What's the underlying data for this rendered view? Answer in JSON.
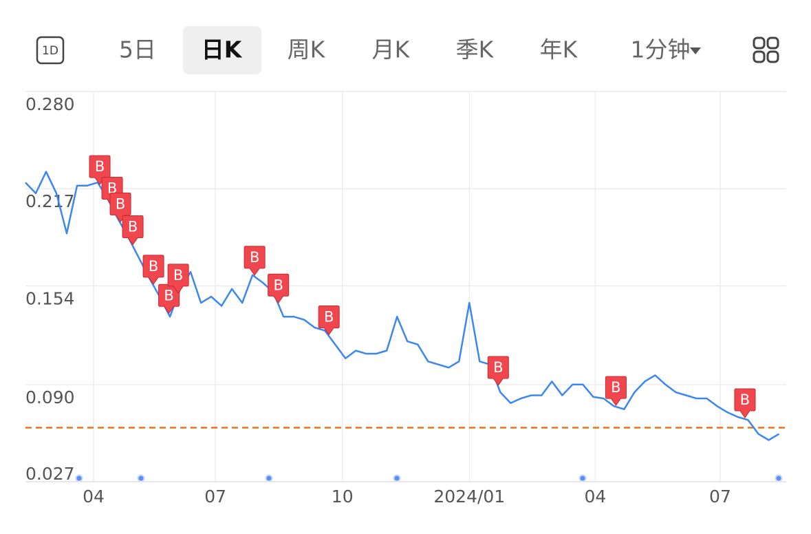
{
  "header": {
    "icon": "1D",
    "tabs": [
      "5日",
      "日K",
      "周K",
      "月K",
      "季K",
      "年K",
      "1分钟"
    ],
    "selected": 1
  },
  "chart_data": {
    "type": "line",
    "color": "#3b86f0",
    "values": [
      0.221,
      0.214,
      0.228,
      0.214,
      0.188,
      0.219,
      0.219,
      0.221,
      0.21,
      0.197,
      0.185,
      0.172,
      0.159,
      0.147,
      0.134,
      0.152,
      0.163,
      0.143,
      0.147,
      0.141,
      0.152,
      0.143,
      0.161,
      0.156,
      0.15,
      0.134,
      0.134,
      0.132,
      0.127,
      0.125,
      0.116,
      0.107,
      0.112,
      0.11,
      0.11,
      0.112,
      0.134,
      0.118,
      0.116,
      0.105,
      0.103,
      0.101,
      0.105,
      0.143,
      0.105,
      0.103,
      0.085,
      0.078,
      0.081,
      0.083,
      0.083,
      0.092,
      0.083,
      0.09,
      0.09,
      0.082,
      0.081,
      0.076,
      0.074,
      0.085,
      0.092,
      0.096,
      0.09,
      0.085,
      0.083,
      0.081,
      0.081,
      0.076,
      0.072,
      0.069,
      0.067,
      0.058,
      0.054,
      0.058
    ],
    "xlim": [
      0,
      73.7
    ],
    "xticks": [
      {
        "value": 6.6,
        "label": "04"
      },
      {
        "value": 18.4,
        "label": "07"
      },
      {
        "value": 30.7,
        "label": "10"
      },
      {
        "value": 43,
        "label": "2024/01"
      },
      {
        "value": 55.2,
        "label": "04"
      },
      {
        "value": 67.3,
        "label": "07"
      }
    ],
    "ylim": [
      0.027,
      0.28
    ],
    "yticks": [
      {
        "value": 0.28,
        "label": "0.280"
      },
      0.217,
      0.154,
      {
        "value": 0.09,
        "label": "0.090"
      },
      0.027
    ],
    "grid": true,
    "reference_line": {
      "value": 0.062,
      "color": "#e8731a"
    },
    "buy_markers": {
      "label": "B",
      "color": "#f0474f",
      "x": [
        7.2,
        8.4,
        9.2,
        10.4,
        12.4,
        13.9,
        14.8,
        22.2,
        24.5,
        29.4,
        45.8,
        57.2,
        69.7
      ]
    }
  }
}
